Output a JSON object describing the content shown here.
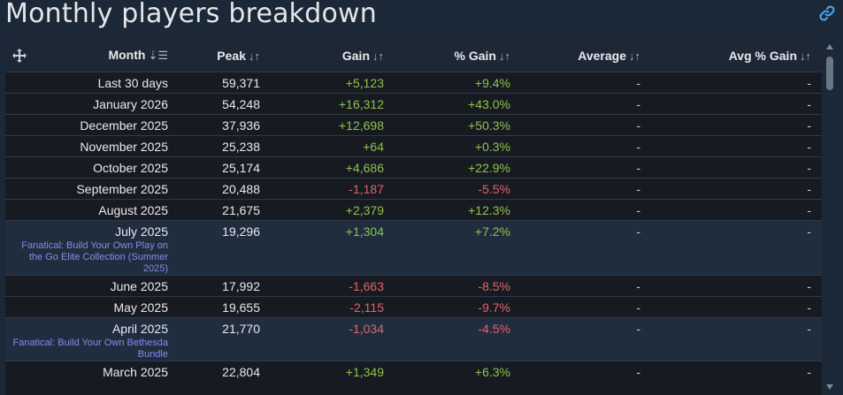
{
  "title": "Monthly players breakdown",
  "link_icon": "link-icon",
  "headers": {
    "month": "Month",
    "peak": "Peak",
    "gain": "Gain",
    "pct_gain": "% Gain",
    "average": "Average",
    "avg_pct_gain": "Avg % Gain"
  },
  "sort_glyph_active": "⇣☰",
  "sort_glyph": "↓↑",
  "rows": [
    {
      "month": "Last 30 days",
      "peak": "59,371",
      "gain": "+5,123",
      "pct": "+9.4%",
      "avg": "-",
      "avg_pct": "-",
      "sign": "pos"
    },
    {
      "month": "January 2026",
      "peak": "54,248",
      "gain": "+16,312",
      "pct": "+43.0%",
      "avg": "-",
      "avg_pct": "-",
      "sign": "pos"
    },
    {
      "month": "December 2025",
      "peak": "37,936",
      "gain": "+12,698",
      "pct": "+50.3%",
      "avg": "-",
      "avg_pct": "-",
      "sign": "pos"
    },
    {
      "month": "November 2025",
      "peak": "25,238",
      "gain": "+64",
      "pct": "+0.3%",
      "avg": "-",
      "avg_pct": "-",
      "sign": "pos"
    },
    {
      "month": "October 2025",
      "peak": "25,174",
      "gain": "+4,686",
      "pct": "+22.9%",
      "avg": "-",
      "avg_pct": "-",
      "sign": "pos"
    },
    {
      "month": "September 2025",
      "peak": "20,488",
      "gain": "-1,187",
      "pct": "-5.5%",
      "avg": "-",
      "avg_pct": "-",
      "sign": "neg"
    },
    {
      "month": "August 2025",
      "peak": "21,675",
      "gain": "+2,379",
      "pct": "+12.3%",
      "avg": "-",
      "avg_pct": "-",
      "sign": "pos"
    },
    {
      "month": "July 2025",
      "sale": "Fanatical: Build Your Own Play on the Go Elite Collection (Summer 2025)",
      "peak": "19,296",
      "gain": "+1,304",
      "pct": "+7.2%",
      "avg": "-",
      "avg_pct": "-",
      "sign": "pos"
    },
    {
      "month": "June 2025",
      "peak": "17,992",
      "gain": "-1,663",
      "pct": "-8.5%",
      "avg": "-",
      "avg_pct": "-",
      "sign": "neg"
    },
    {
      "month": "May 2025",
      "peak": "19,655",
      "gain": "-2,115",
      "pct": "-9.7%",
      "avg": "-",
      "avg_pct": "-",
      "sign": "neg"
    },
    {
      "month": "April 2025",
      "sale": "Fanatical: Build Your Own Bethesda Bundle",
      "peak": "21,770",
      "gain": "-1,034",
      "pct": "-4.5%",
      "avg": "-",
      "avg_pct": "-",
      "sign": "neg"
    },
    {
      "month": "March 2025",
      "peak": "22,804",
      "gain": "+1,349",
      "pct": "+6.3%",
      "avg": "-",
      "avg_pct": "-",
      "sign": "pos"
    }
  ],
  "colors": {
    "background": "#1b2838",
    "panel": "#171a21",
    "positive": "#8dc44b",
    "negative": "#e0646a",
    "sale_link": "#8b8ae8",
    "link_icon": "#4aa3e8"
  }
}
